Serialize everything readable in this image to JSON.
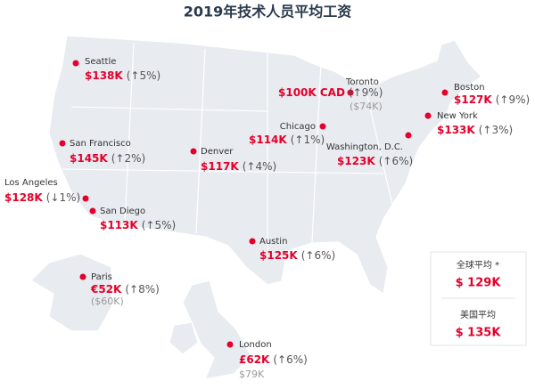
{
  "title": "2019年技术人员平均工资",
  "cities": [
    {
      "name": "Seattle",
      "salary": "$138K",
      "change": "(↑5%)"
    },
    {
      "name": "Toronto",
      "salary": "$100K CAD",
      "change": "(↑9%)",
      "local": "($74K)"
    },
    {
      "name": "Boston",
      "salary": "$127K",
      "change": "(↑9%)"
    },
    {
      "name": "New York",
      "salary": "$133K",
      "change": "(↑3%)"
    },
    {
      "name": "Chicago",
      "salary": "$114K",
      "change": "(↑1%)"
    },
    {
      "name": "Washington, D.C.",
      "salary": "$123K",
      "change": "(↑6%)"
    },
    {
      "name": "San Francisco",
      "salary": "$145K",
      "change": "(↑2%)"
    },
    {
      "name": "Denver",
      "salary": "$117K",
      "change": "(↑4%)"
    },
    {
      "name": "Los Angeles",
      "salary": "$128K",
      "change": "(↓1%)"
    },
    {
      "name": "San Diego",
      "salary": "$113K",
      "change": "(↑5%)"
    },
    {
      "name": "Austin",
      "salary": "$125K",
      "change": "(↑6%)"
    },
    {
      "name": "Paris",
      "salary": "€52K",
      "change": "(↑8%)",
      "local": "($60K)"
    },
    {
      "name": "London",
      "salary": "£62K",
      "change": "(↑6%)",
      "local": "$79K"
    }
  ],
  "legend": {
    "global_label": "全球平均 *",
    "global_value": "$ 129K",
    "us_label": "美国平均",
    "us_value": "$ 135K"
  }
}
